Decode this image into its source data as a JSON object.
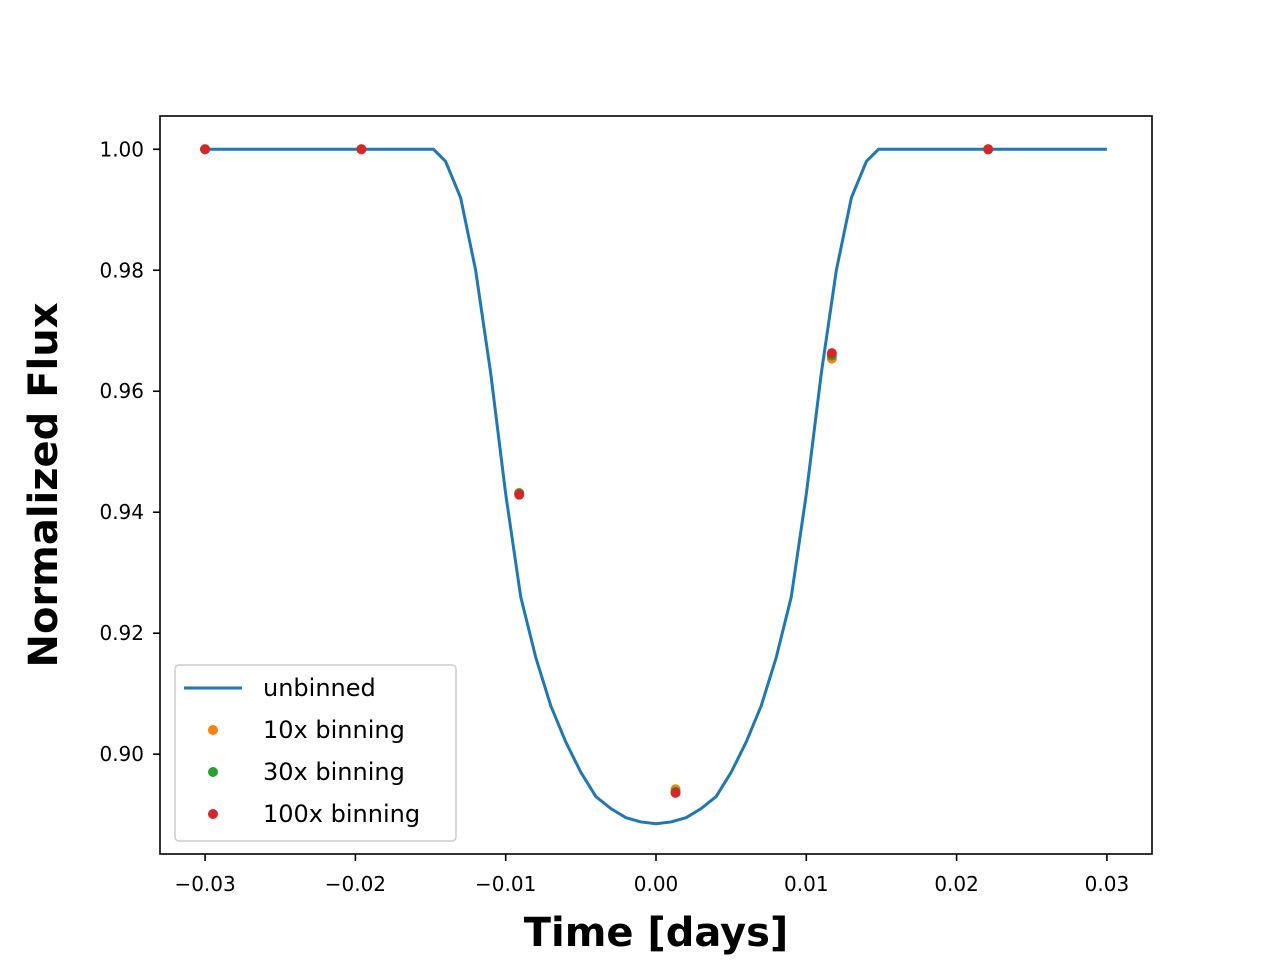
{
  "chart_data": {
    "type": "line",
    "title": "",
    "xlabel": "Time [days]",
    "ylabel": "Normalized Flux",
    "xlim": [
      -0.033,
      0.033
    ],
    "ylim": [
      0.8835,
      1.0055
    ],
    "xticks": [
      -0.03,
      -0.02,
      -0.01,
      0.0,
      0.01,
      0.02,
      0.03
    ],
    "xtick_labels": [
      "−0.03",
      "−0.02",
      "−0.01",
      "0.00",
      "0.01",
      "0.02",
      "0.03"
    ],
    "yticks": [
      0.9,
      0.92,
      0.94,
      0.96,
      0.98,
      1.0
    ],
    "ytick_labels": [
      "0.90",
      "0.92",
      "0.94",
      "0.96",
      "0.98",
      "1.00"
    ],
    "grid": false,
    "legend_position": "lower-left",
    "series": [
      {
        "name": "unbinned",
        "kind": "line",
        "color": "#1f77b4",
        "x": [
          -0.03,
          -0.0148,
          -0.014,
          -0.013,
          -0.012,
          -0.011,
          -0.01,
          -0.009,
          -0.008,
          -0.007,
          -0.006,
          -0.005,
          -0.004,
          -0.003,
          -0.002,
          -0.001,
          0.0,
          0.001,
          0.002,
          0.003,
          0.004,
          0.005,
          0.006,
          0.007,
          0.008,
          0.009,
          0.01,
          0.011,
          0.012,
          0.013,
          0.014,
          0.0148,
          0.03
        ],
        "y": [
          1.0,
          1.0,
          0.998,
          0.992,
          0.98,
          0.963,
          0.943,
          0.926,
          0.916,
          0.908,
          0.902,
          0.897,
          0.893,
          0.891,
          0.8895,
          0.8888,
          0.8885,
          0.8888,
          0.8895,
          0.891,
          0.893,
          0.897,
          0.902,
          0.908,
          0.916,
          0.926,
          0.943,
          0.963,
          0.98,
          0.992,
          0.998,
          1.0,
          1.0
        ]
      },
      {
        "name": "10x binning",
        "kind": "scatter",
        "color": "#ff7f0e",
        "x": [
          -0.03,
          -0.0196,
          -0.0091,
          0.0013,
          0.0117,
          0.0221
        ],
        "y": [
          1.0,
          1.0,
          0.9432,
          0.8942,
          0.9654,
          1.0
        ]
      },
      {
        "name": "30x binning",
        "kind": "scatter",
        "color": "#2ca02c",
        "x": [
          -0.03,
          -0.0196,
          -0.0091,
          0.0013,
          0.0117,
          0.0221
        ],
        "y": [
          1.0,
          1.0,
          0.9431,
          0.8938,
          0.9659,
          1.0
        ]
      },
      {
        "name": "100x binning",
        "kind": "scatter",
        "color": "#d62728",
        "x": [
          -0.03,
          -0.0196,
          -0.0091,
          0.0013,
          0.0117,
          0.0221
        ],
        "y": [
          1.0,
          1.0,
          0.9429,
          0.8936,
          0.9663,
          1.0
        ]
      }
    ]
  }
}
